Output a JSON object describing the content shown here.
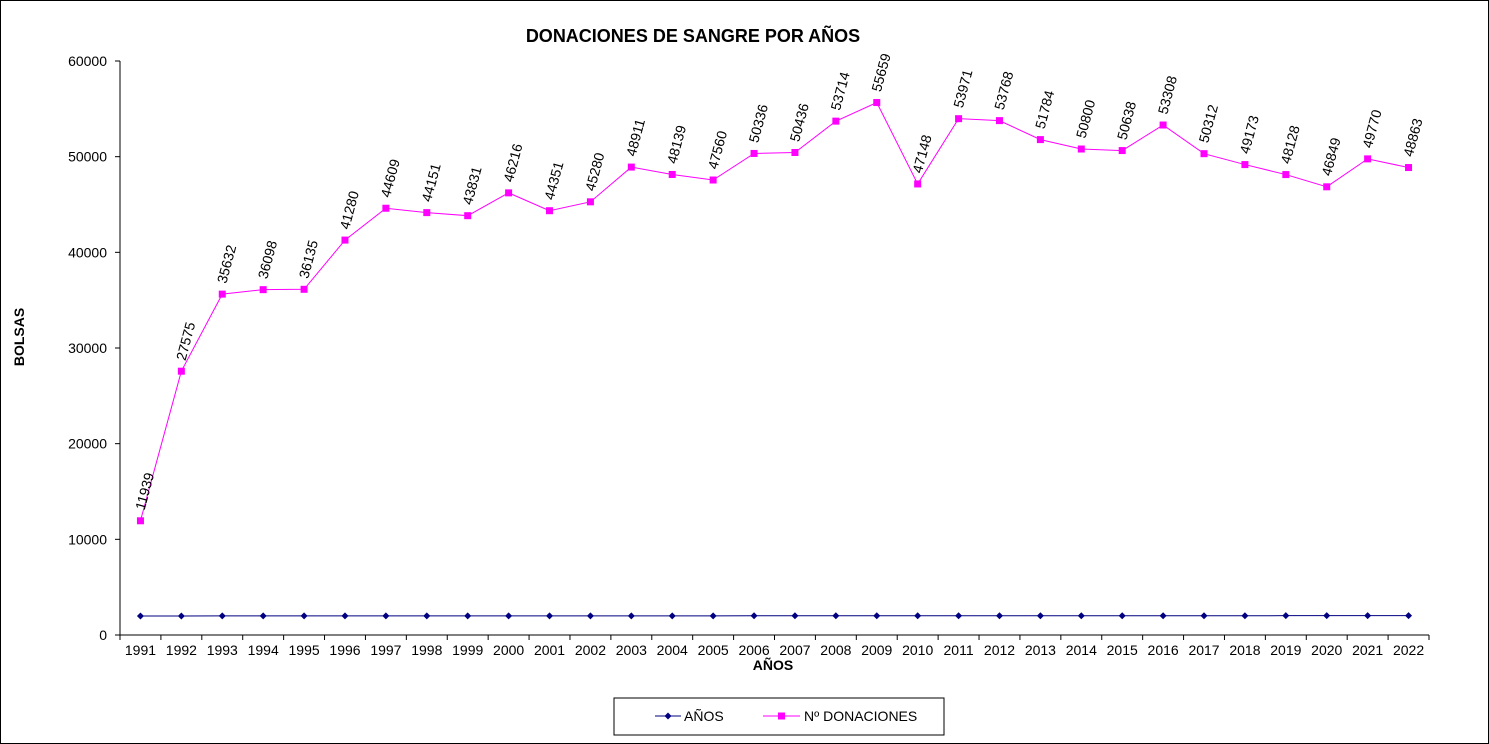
{
  "chart_data": {
    "type": "line",
    "title": "DONACIONES DE SANGRE POR AÑOS",
    "xlabel": "AÑOS",
    "ylabel": "BOLSAS",
    "ylim": [
      0,
      60000
    ],
    "yticks": [
      "0",
      "10000",
      "20000",
      "30000",
      "40000",
      "50000",
      "60000"
    ],
    "categories": [
      "1991",
      "1992",
      "1993",
      "1994",
      "1995",
      "1996",
      "1997",
      "1998",
      "1999",
      "2000",
      "2001",
      "2002",
      "2003",
      "2004",
      "2005",
      "2006",
      "2007",
      "2008",
      "2009",
      "2010",
      "2011",
      "2012",
      "2013",
      "2014",
      "2015",
      "2016",
      "2017",
      "2018",
      "2019",
      "2020",
      "2021",
      "2022"
    ],
    "grid": false,
    "legend_position": "bottom",
    "series": [
      {
        "name": "AÑOS",
        "color": "#000080",
        "marker": "diamond",
        "values": [
          1991,
          1992,
          1993,
          1994,
          1995,
          1996,
          1997,
          1998,
          1999,
          2000,
          2001,
          2002,
          2003,
          2004,
          2005,
          2006,
          2007,
          2008,
          2009,
          2010,
          2011,
          2012,
          2013,
          2014,
          2015,
          2016,
          2017,
          2018,
          2019,
          2020,
          2021,
          2022
        ],
        "show_labels": false
      },
      {
        "name": "Nº DONACIONES",
        "color": "#FF00FF",
        "marker": "square",
        "values": [
          11939,
          27575,
          35632,
          36098,
          36135,
          41280,
          44609,
          44151,
          43831,
          46216,
          44351,
          45280,
          48911,
          48139,
          47560,
          50336,
          50436,
          53714,
          55659,
          47148,
          53971,
          53768,
          51784,
          50800,
          50638,
          53308,
          50312,
          49173,
          48128,
          46849,
          49770,
          48863
        ],
        "show_labels": true
      }
    ]
  }
}
